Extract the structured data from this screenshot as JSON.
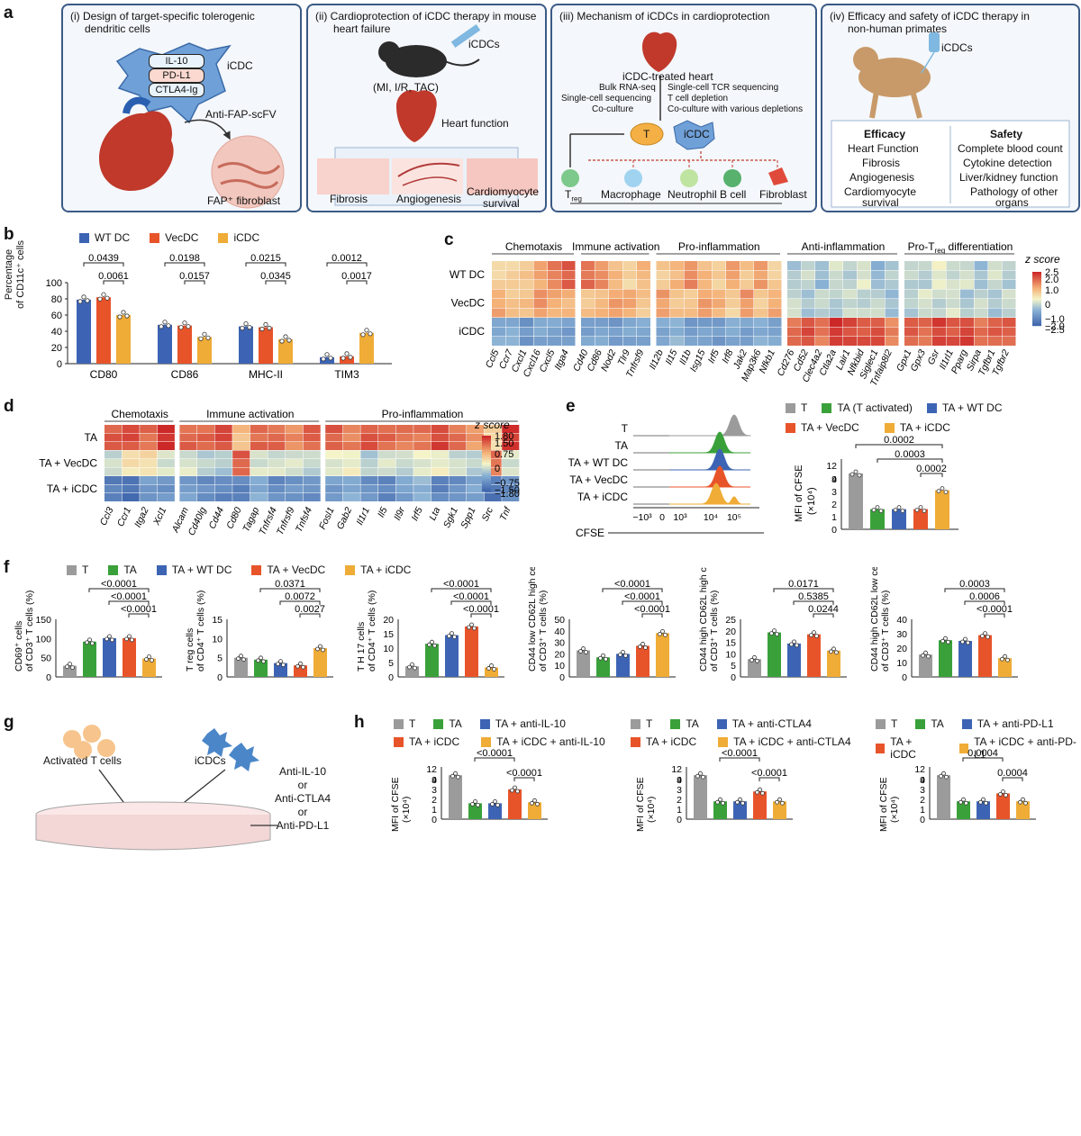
{
  "panel_a": {
    "label": "a",
    "boxes": [
      {
        "title_lines": [
          "(i)  Design of target-specific tolerogenic",
          "dendritic cells"
        ],
        "cell_label": "iCDC",
        "tags": [
          "IL-10",
          "PD-L1",
          "CTLA4-Ig"
        ],
        "scfv": "Anti-FAP-scFV",
        "fibroblast": "FAP⁺ fibroblast"
      },
      {
        "title_lines": [
          "(ii)  Cardioprotection of iCDC therapy in mouse",
          "heart failure"
        ],
        "injection": "iCDCs",
        "models": "(MI, I/R, TAC)",
        "heart": "Heart function",
        "bottom": [
          "Fibrosis",
          "Angiogenesis",
          "Cardiomyocyte",
          "survival"
        ]
      },
      {
        "title_lines": [
          "(iii)  Mechanism of iCDCs in cardioprotection"
        ],
        "heart": "iCDC-treated heart",
        "methods_left": [
          "Bulk RNA-seq",
          "Single-cell sequencing",
          "Co-culture"
        ],
        "methods_right": [
          "Single-cell TCR sequencing",
          "T cell depletion",
          "Co-culture with various depletions"
        ],
        "t": "T",
        "icdc": "iCDC",
        "targets": [
          "T",
          "reg",
          "Macrophage",
          "Neutrophil",
          "B cell",
          "Fibroblast"
        ]
      },
      {
        "title_lines": [
          "(iv)  Efficacy and safety of iCDC therapy in",
          "non-human primates"
        ],
        "injection": "iCDCs",
        "efficacy_head": "Efficacy",
        "efficacy": [
          "Heart Function",
          "Fibrosis",
          "Angiogenesis",
          "Cardiomyocyte",
          "survival"
        ],
        "safety_head": "Safety",
        "safety": [
          "Complete blood count",
          "Cytokine detection",
          "Liver/kidney function",
          "Pathology of other",
          "organs"
        ]
      }
    ]
  },
  "panel_b": {
    "label": "b",
    "legend": [
      "WT DC",
      "VecDC",
      "iCDC"
    ],
    "colors": [
      "#3d64b4",
      "#e8542a",
      "#efac37"
    ],
    "ylabel_lines": [
      "Percentage",
      "of CD11c⁺ cells"
    ],
    "chart_data": {
      "type": "bar",
      "categories": [
        "CD80",
        "CD86",
        "MHC-II",
        "TIM3"
      ],
      "series": [
        {
          "name": "WT DC",
          "values": [
            79,
            48,
            46,
            8
          ]
        },
        {
          "name": "VecDC",
          "values": [
            82,
            47,
            45,
            9
          ]
        },
        {
          "name": "iCDC",
          "values": [
            60,
            33,
            30,
            38
          ]
        }
      ],
      "ylim": [
        0,
        100
      ],
      "yticks": [
        "0",
        "20",
        "40",
        "60",
        "80",
        "100"
      ],
      "pvalues_outer": [
        "0.0439",
        "0.0198",
        "0.0215",
        "0.0012"
      ],
      "pvalues_inner": [
        "0.0061",
        "0.0157",
        "0.0345",
        "0.0017"
      ]
    }
  },
  "panel_c": {
    "label": "c",
    "groups": [
      "Chemotaxis",
      "Immune activation",
      "Pro-inflammation",
      "Anti-inflammation",
      "Pro-T",
      "reg",
      " differentiation"
    ],
    "rows": [
      "WT DC",
      "VecDC",
      "iCDC"
    ],
    "genes": [
      "Ccl5",
      "Ccr7",
      "Cxcl1",
      "Cxcl16",
      "Cxcl5",
      "Itga4",
      "Cd40",
      "Cd86",
      "Nod2",
      "Tlr9",
      "Tnfrsf9",
      "Il12b",
      "Il15",
      "Il1b",
      "Isg15",
      "Irf5",
      "Irf8",
      "Jak2",
      "Map3k6",
      "Nfkb1",
      "Cd276",
      "Cd52",
      "Clec4a2",
      "Ctla2a",
      "Lair1",
      "Nfkbid",
      "Siglec1",
      "Tnfaip8l2",
      "Gpx1",
      "Gpx3",
      "Gsr",
      "Il1rl1",
      "Pparg",
      "Sirpa",
      "Tgfbr1",
      "Tgfbr2"
    ],
    "scale_title": "z score",
    "scale_ticks": [
      "2.5",
      "2.0",
      "1.0",
      "0",
      "−1.0",
      "−2.0",
      "−2.5"
    ]
  },
  "panel_d": {
    "label": "d",
    "groups": [
      "Chemotaxis",
      "Immune activation",
      "Pro-inflammation"
    ],
    "rows": [
      "TA",
      "TA + VecDC",
      "TA + iCDC"
    ],
    "genes": [
      "Ccl3",
      "Ccr1",
      "Itga2",
      "Xcl1",
      "Alcam",
      "Cd40lg",
      "Cd44",
      "Cd80",
      "Tagap",
      "Tnfrsf4",
      "Tnfrsf9",
      "Tnfsf4",
      "Fosl1",
      "Gab2",
      "Il1r1",
      "Il5",
      "Il9r",
      "Irf5",
      "Lta",
      "Sgk1",
      "Spp1",
      "Src",
      "Tnf"
    ],
    "scale_title": "z score",
    "scale_ticks": [
      "1.80",
      "1.50",
      "0.75",
      "0",
      "−0.75",
      "−1.50",
      "−1.80"
    ]
  },
  "panel_e": {
    "label": "e",
    "histo_rows": [
      "T",
      "TA",
      "TA + WT DC",
      "TA + VecDC",
      "TA + iCDC"
    ],
    "histo_colors": [
      "#9b9b9b",
      "#3aa13a",
      "#3d64b4",
      "#e8542a",
      "#efac37"
    ],
    "xaxis": "CFSE",
    "xticks": [
      "−10³",
      "0",
      "10³",
      "10⁴",
      "10⁵"
    ],
    "legend": [
      "T",
      "TA (T activated)",
      "TA + WT DC",
      "TA + VecDC",
      "TA + iCDC"
    ],
    "ylabel_lines": [
      "MFI of CFSE",
      "(×10⁴)"
    ],
    "chart_data": {
      "type": "bar",
      "categories": [
        "T",
        "TA (T activated)",
        "TA + WT DC",
        "TA + VecDC",
        "TA + iCDC"
      ],
      "values": [
        10.2,
        1.6,
        1.6,
        1.6,
        3.1
      ],
      "yticks": [
        "0",
        "1",
        "2",
        "3",
        "4",
        "9",
        "12"
      ],
      "pvalues": [
        "0.0002",
        "0.0003",
        "0.0002"
      ]
    }
  },
  "panel_f": {
    "label": "f",
    "legend": [
      "T",
      "TA",
      "TA + WT DC",
      "TA + VecDC",
      "TA + iCDC"
    ],
    "colors": [
      "#9b9b9b",
      "#3aa13a",
      "#3d64b4",
      "#e8542a",
      "#efac37"
    ],
    "charts": [
      {
        "ylabel": [
          "CD69⁺ cells",
          "of CD3⁺ T cells (%)"
        ],
        "yticks": [
          "0",
          "50",
          "100",
          "150"
        ],
        "ymax": 150,
        "values": [
          29,
          92,
          101,
          101,
          48
        ],
        "pvalues": [
          "<0.0001",
          "<0.0001",
          "<0.0001"
        ]
      },
      {
        "ylabel": [
          "T reg cells",
          "of CD4⁺ T cells (%)"
        ],
        "yticks": [
          "0",
          "5",
          "10",
          "15"
        ],
        "ymax": 15,
        "values": [
          5,
          4.5,
          3.6,
          3,
          7.5
        ],
        "pvalues": [
          "0.0371",
          "0.0072",
          "0.0027"
        ]
      },
      {
        "ylabel": [
          "T H 17 cells",
          "of CD4⁺ T cells (%)"
        ],
        "yticks": [
          "0",
          "5",
          "10",
          "15",
          "20"
        ],
        "ymax": 20,
        "values": [
          3.7,
          11.5,
          14.5,
          17.5,
          3.3
        ],
        "pvalues": [
          "<0.0001",
          "<0.0001",
          "<0.0001"
        ]
      },
      {
        "ylabel": [
          "CD44 low CD62L high cells",
          "of CD3⁺ T cells (%)"
        ],
        "yticks": [
          "0",
          "10",
          "20",
          "30",
          "40",
          "50"
        ],
        "ymax": 50,
        "values": [
          23,
          17,
          20,
          27,
          38
        ],
        "pvalues": [
          "<0.0001",
          "<0.0001",
          "<0.0001"
        ]
      },
      {
        "ylabel": [
          "CD44 high CD62L high cells",
          "of CD3⁺ T cells (%)"
        ],
        "yticks": [
          "0",
          "5",
          "10",
          "15",
          "20",
          "25"
        ],
        "ymax": 25,
        "values": [
          7.7,
          19.3,
          14.5,
          18.5,
          11.4
        ],
        "pvalues": [
          "0.0171",
          "0.5385",
          "0.0244"
        ]
      },
      {
        "ylabel": [
          "CD44 high CD62L low cells",
          "of CD3⁺ T cells (%)"
        ],
        "yticks": [
          "0",
          "10",
          "20",
          "30",
          "40"
        ],
        "ymax": 40,
        "values": [
          15.5,
          25.5,
          25,
          29,
          13
        ],
        "pvalues": [
          "0.0003",
          "0.0006",
          "<0.0001"
        ]
      }
    ]
  },
  "panel_g": {
    "label": "g",
    "left": "Activated T cells",
    "right": "iCDCs",
    "antibodies": [
      "Anti-IL-10",
      "or",
      "Anti-CTLA4",
      "or",
      "Anti-PD-L1"
    ]
  },
  "panel_h": {
    "label": "h",
    "colors": [
      "#9b9b9b",
      "#3aa13a",
      "#3d64b4",
      "#e8542a",
      "#efac37"
    ],
    "groups": [
      {
        "legend": [
          "T",
          "TA",
          "TA + anti-IL-10",
          "TA + iCDC",
          "TA + iCDC + anti-IL-10"
        ],
        "values": [
          10.2,
          1.6,
          1.6,
          3.0,
          1.7
        ],
        "pvalues": [
          "<0.0001",
          "<0.0001"
        ]
      },
      {
        "legend": [
          "T",
          "TA",
          "TA + anti-CTLA4",
          "TA + iCDC",
          "TA + iCDC + anti-CTLA4"
        ],
        "values": [
          10.2,
          1.8,
          1.8,
          2.8,
          1.8
        ],
        "pvalues": [
          "<0.0001",
          "<0.0001"
        ]
      },
      {
        "legend": [
          "T",
          "TA",
          "TA + anti-PD-L1",
          "TA + iCDC",
          "TA + iCDC + anti-PD-L1"
        ],
        "values": [
          10.2,
          1.8,
          1.8,
          2.6,
          1.8
        ],
        "pvalues": [
          "0.0004",
          "0.0004"
        ]
      }
    ],
    "ylabel_lines": [
      "MFI of CFSE",
      "(×10⁴)"
    ]
  }
}
